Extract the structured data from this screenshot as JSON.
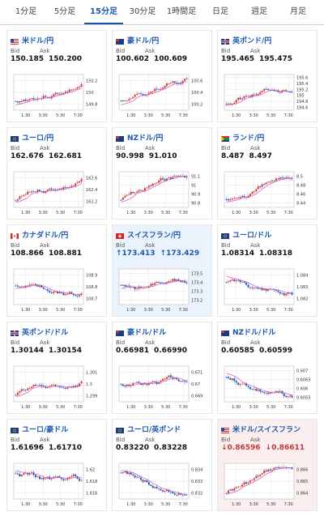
{
  "tabs": [
    {
      "label": "1分足",
      "active": false
    },
    {
      "label": "5分足",
      "active": false
    },
    {
      "label": "15分足",
      "active": true
    },
    {
      "label": "30分足",
      "active": false
    },
    {
      "label": "1時間足",
      "active": false
    },
    {
      "label": "日足",
      "active": false
    },
    {
      "label": "週足",
      "active": false
    },
    {
      "label": "月足",
      "active": false
    }
  ],
  "labels": {
    "bid": "Bid",
    "ask": "Ask"
  },
  "x_ticks": [
    "1:30",
    "3:30",
    "5:30",
    "7:30"
  ],
  "colors": {
    "accent": "#1a57b0",
    "up": "#d23b3b",
    "down": "#1e5bb5",
    "ma": "#d24fc3"
  },
  "cards": [
    {
      "name": "米ドル/円",
      "flag": "us",
      "bid": "150.185",
      "ask": "150.200",
      "y_ticks": [
        "150.2",
        "150",
        "149.8"
      ],
      "trend": "up",
      "hl": ""
    },
    {
      "name": "豪ドル/円",
      "flag": "au",
      "bid": "100.602",
      "ask": "100.609",
      "y_ticks": [
        "100.6",
        "100.4",
        "100.2"
      ],
      "trend": "up",
      "hl": ""
    },
    {
      "name": "英ポンド/円",
      "flag": "gb",
      "bid": "195.465",
      "ask": "195.475",
      "y_ticks": [
        "195.6",
        "195.4",
        "195.2",
        "195",
        "194.8",
        "194.6"
      ],
      "trend": "up",
      "hl": ""
    },
    {
      "name": "ユーロ/円",
      "flag": "eu",
      "bid": "162.676",
      "ask": "162.681",
      "y_ticks": [
        "162.6",
        "162.4",
        "162.2"
      ],
      "trend": "up",
      "hl": ""
    },
    {
      "name": "NZドル/円",
      "flag": "nz",
      "bid": "90.998",
      "ask": "91.010",
      "y_ticks": [
        "91.1",
        "91",
        "90.9",
        "90.8"
      ],
      "trend": "up",
      "hl": ""
    },
    {
      "name": "ランド/円",
      "flag": "za",
      "bid": "8.487",
      "ask": "8.497",
      "y_ticks": [
        "8.5",
        "8.48",
        "8.46",
        "8.44"
      ],
      "trend": "up",
      "hl": ""
    },
    {
      "name": "カナダドル/円",
      "flag": "ca",
      "bid": "108.866",
      "ask": "108.881",
      "y_ticks": [
        "108.9",
        "108.8",
        "108.7"
      ],
      "trend": "flat",
      "hl": ""
    },
    {
      "name": "スイスフラン/円",
      "flag": "ch",
      "bid": "↑173.413",
      "ask": "↑173.429",
      "dir": "up",
      "y_ticks": [
        "173.5",
        "173.4",
        "173.3",
        "173.2"
      ],
      "trend": "flat",
      "hl": "blue"
    },
    {
      "name": "ユーロ/ドル",
      "flag": "eu",
      "bid": "1.08314",
      "ask": "1.08318",
      "y_ticks": [
        "1.084",
        "1.083",
        "1.082"
      ],
      "trend": "down",
      "hl": ""
    },
    {
      "name": "英ポンド/ドル",
      "flag": "gb",
      "bid": "1.30144",
      "ask": "1.30154",
      "y_ticks": [
        "1.301",
        "1.3",
        "1.299"
      ],
      "trend": "up",
      "hl": ""
    },
    {
      "name": "豪ドル/ドル",
      "flag": "au",
      "bid": "0.66981",
      "ask": "0.66990",
      "y_ticks": [
        "0.671",
        "0.67",
        "0.669"
      ],
      "trend": "flat",
      "hl": ""
    },
    {
      "name": "NZドル/ドル",
      "flag": "nz",
      "bid": "0.60585",
      "ask": "0.60599",
      "y_ticks": [
        "0.607",
        "0.6065",
        "0.606",
        "0.6055"
      ],
      "trend": "down",
      "hl": ""
    },
    {
      "name": "ユーロ/豪ドル",
      "flag": "eu",
      "bid": "1.61696",
      "ask": "1.61710",
      "y_ticks": [
        "1.62",
        "1.618",
        "1.616"
      ],
      "trend": "down",
      "hl": ""
    },
    {
      "name": "ユーロ/英ポンド",
      "flag": "eu",
      "bid": "0.83220",
      "ask": "0.83228",
      "y_ticks": [
        "0.834",
        "0.833",
        "0.832"
      ],
      "trend": "down",
      "hl": ""
    },
    {
      "name": "米ドル/スイスフラン",
      "flag": "us",
      "bid": "↓0.86596",
      "ask": "↓0.86611",
      "dir": "down",
      "y_ticks": [
        "0.866",
        "0.865",
        "0.864"
      ],
      "trend": "up",
      "hl": "red"
    }
  ]
}
